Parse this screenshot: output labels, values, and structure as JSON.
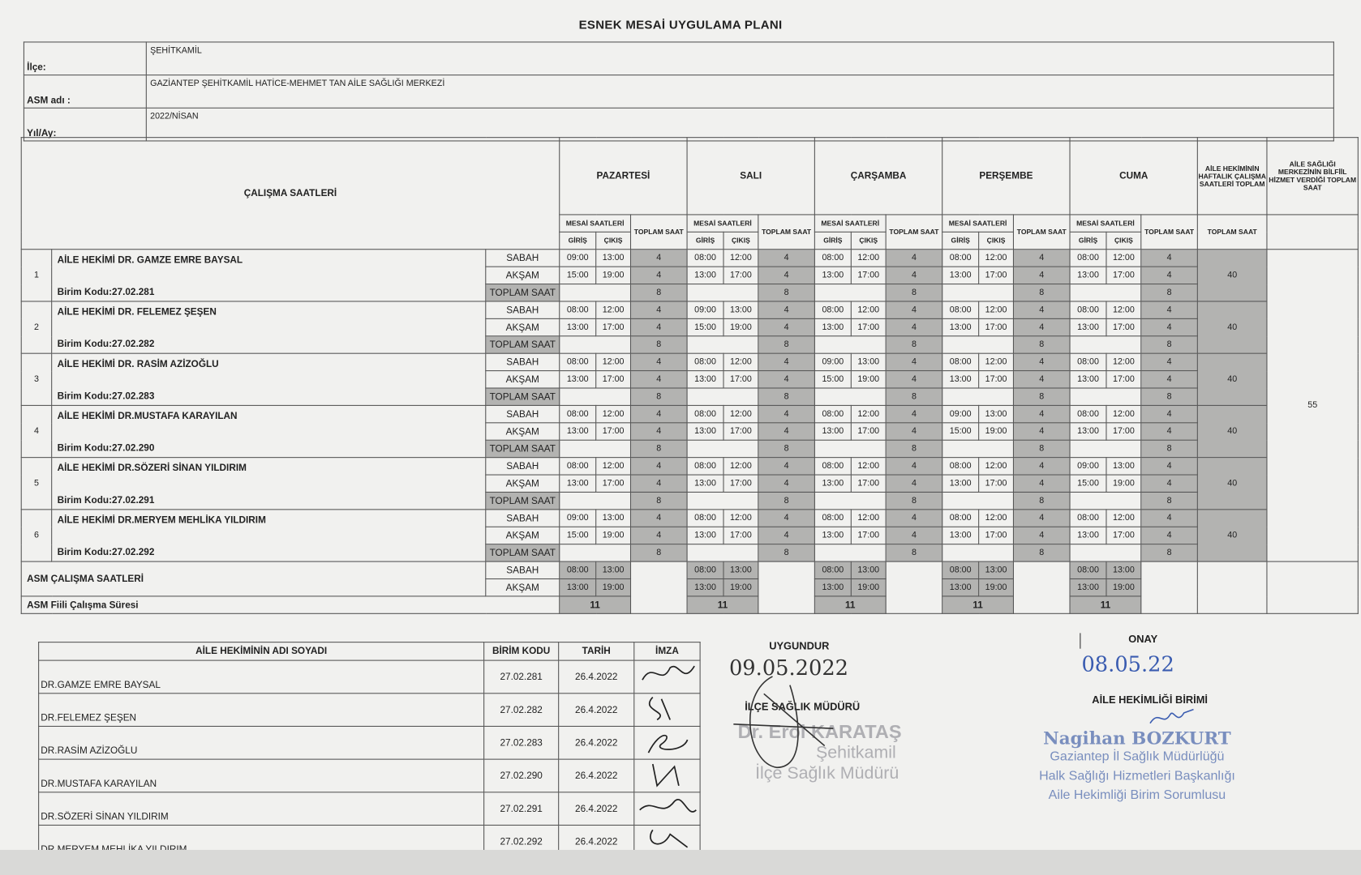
{
  "title": "ESNEK MESAİ UYGULAMA PLANI",
  "header": {
    "ilce_label": "İlçe:",
    "ilce": "ŞEHİTKAMİL",
    "asm_label": "ASM adı :",
    "asm": "GAZİANTEP ŞEHİTKAMİL HATİCE-MEHMET TAN AİLE SAĞLIĞI MERKEZİ",
    "yilay_label": "Yıl/Ay:",
    "yilay": "2022/NİSAN"
  },
  "table": {
    "section_title": "ÇALIŞMA SAATLERİ",
    "days": [
      "PAZARTESİ",
      "SALI",
      "ÇARŞAMBA",
      "PERŞEMBE",
      "CUMA"
    ],
    "mesai_label": "MESAİ SAATLERİ",
    "toplam_saat_label": "TOPLAM SAAT",
    "giris": "GİRİŞ",
    "cikis": "ÇIKIŞ",
    "weekly_header": "AİLE HEKİMİNİN HAFTALIK ÇALIŞMA SAATLERİ TOPLAM",
    "asm_header": "AİLE SAĞLIĞI MERKEZİNİN BİLFİİL HİZMET VERDİĞİ TOPLAM SAAT",
    "sabah": "SABAH",
    "aksam": "AKŞAM",
    "toplam_row": "TOPLAM SAAT",
    "shift_hours": "4",
    "day_hours": "8",
    "doctors": [
      {
        "no": "1",
        "name": "AİLE HEKİMİ DR. GAMZE EMRE BAYSAL",
        "kod": "Birim Kodu:27.02.281",
        "weekly": "40",
        "days": [
          {
            "s": [
              "09:00",
              "13:00"
            ],
            "a": [
              "15:00",
              "19:00"
            ]
          },
          {
            "s": [
              "08:00",
              "12:00"
            ],
            "a": [
              "13:00",
              "17:00"
            ]
          },
          {
            "s": [
              "08:00",
              "12:00"
            ],
            "a": [
              "13:00",
              "17:00"
            ]
          },
          {
            "s": [
              "08:00",
              "12:00"
            ],
            "a": [
              "13:00",
              "17:00"
            ]
          },
          {
            "s": [
              "08:00",
              "12:00"
            ],
            "a": [
              "13:00",
              "17:00"
            ]
          }
        ]
      },
      {
        "no": "2",
        "name": "AİLE HEKİMİ DR. FELEMEZ ŞEŞEN",
        "kod": "Birim Kodu:27.02.282",
        "weekly": "40",
        "days": [
          {
            "s": [
              "08:00",
              "12:00"
            ],
            "a": [
              "13:00",
              "17:00"
            ]
          },
          {
            "s": [
              "09:00",
              "13:00"
            ],
            "a": [
              "15:00",
              "19:00"
            ]
          },
          {
            "s": [
              "08:00",
              "12:00"
            ],
            "a": [
              "13:00",
              "17:00"
            ]
          },
          {
            "s": [
              "08:00",
              "12:00"
            ],
            "a": [
              "13:00",
              "17:00"
            ]
          },
          {
            "s": [
              "08:00",
              "12:00"
            ],
            "a": [
              "13:00",
              "17:00"
            ]
          }
        ]
      },
      {
        "no": "3",
        "name": "AİLE HEKİMİ DR. RASİM AZİZOĞLU",
        "kod": "Birim Kodu:27.02.283",
        "weekly": "40",
        "days": [
          {
            "s": [
              "08:00",
              "12:00"
            ],
            "a": [
              "13:00",
              "17:00"
            ]
          },
          {
            "s": [
              "08:00",
              "12:00"
            ],
            "a": [
              "13:00",
              "17:00"
            ]
          },
          {
            "s": [
              "09:00",
              "13:00"
            ],
            "a": [
              "15:00",
              "19:00"
            ]
          },
          {
            "s": [
              "08:00",
              "12:00"
            ],
            "a": [
              "13:00",
              "17:00"
            ]
          },
          {
            "s": [
              "08:00",
              "12:00"
            ],
            "a": [
              "13:00",
              "17:00"
            ]
          }
        ]
      },
      {
        "no": "4",
        "name": "AİLE HEKİMİ DR.MUSTAFA KARAYILAN",
        "kod": "Birim Kodu:27.02.290",
        "weekly": "40",
        "days": [
          {
            "s": [
              "08:00",
              "12:00"
            ],
            "a": [
              "13:00",
              "17:00"
            ]
          },
          {
            "s": [
              "08:00",
              "12:00"
            ],
            "a": [
              "13:00",
              "17:00"
            ]
          },
          {
            "s": [
              "08:00",
              "12:00"
            ],
            "a": [
              "13:00",
              "17:00"
            ]
          },
          {
            "s": [
              "09:00",
              "13:00"
            ],
            "a": [
              "15:00",
              "19:00"
            ]
          },
          {
            "s": [
              "08:00",
              "12:00"
            ],
            "a": [
              "13:00",
              "17:00"
            ]
          }
        ]
      },
      {
        "no": "5",
        "name": "AİLE HEKİMİ DR.SÖZERİ SİNAN YILDIRIM",
        "kod": "Birim Kodu:27.02.291",
        "weekly": "40",
        "days": [
          {
            "s": [
              "08:00",
              "12:00"
            ],
            "a": [
              "13:00",
              "17:00"
            ]
          },
          {
            "s": [
              "08:00",
              "12:00"
            ],
            "a": [
              "13:00",
              "17:00"
            ]
          },
          {
            "s": [
              "08:00",
              "12:00"
            ],
            "a": [
              "13:00",
              "17:00"
            ]
          },
          {
            "s": [
              "08:00",
              "12:00"
            ],
            "a": [
              "13:00",
              "17:00"
            ]
          },
          {
            "s": [
              "09:00",
              "13:00"
            ],
            "a": [
              "15:00",
              "19:00"
            ]
          }
        ]
      },
      {
        "no": "6",
        "name": "AİLE HEKİMİ DR.MERYEM MEHLİKA YILDIRIM",
        "kod": "Birim Kodu:27.02.292",
        "weekly": "40",
        "days": [
          {
            "s": [
              "09:00",
              "13:00"
            ],
            "a": [
              "15:00",
              "19:00"
            ]
          },
          {
            "s": [
              "08:00",
              "12:00"
            ],
            "a": [
              "13:00",
              "17:00"
            ]
          },
          {
            "s": [
              "08:00",
              "12:00"
            ],
            "a": [
              "13:00",
              "17:00"
            ]
          },
          {
            "s": [
              "08:00",
              "12:00"
            ],
            "a": [
              "13:00",
              "17:00"
            ]
          },
          {
            "s": [
              "08:00",
              "12:00"
            ],
            "a": [
              "13:00",
              "17:00"
            ]
          }
        ]
      }
    ],
    "asm_total": "55",
    "asm_rows_label": "ASM ÇALIŞMA SAATLERİ",
    "asm_sabah": [
      "08:00",
      "13:00"
    ],
    "asm_aksam": [
      "13:00",
      "19:00"
    ],
    "fiili_label": "ASM Fiili Çalışma Süresi",
    "fiili": "11"
  },
  "signatures": {
    "headers": {
      "name": "AİLE HEKİMİNİN ADI SOYADI",
      "kod": "BİRİM KODU",
      "tarih": "TARİH",
      "imza": "İMZA"
    },
    "rows": [
      {
        "name": "DR.GAMZE EMRE BAYSAL",
        "kod": "27.02.281",
        "tarih": "26.4.2022"
      },
      {
        "name": "DR.FELEMEZ ŞEŞEN",
        "kod": "27.02.282",
        "tarih": "26.4.2022"
      },
      {
        "name": "DR.RASİM AZİZOĞLU",
        "kod": "27.02.283",
        "tarih": "26.4.2022"
      },
      {
        "name": "DR.MUSTAFA KARAYILAN",
        "kod": "27.02.290",
        "tarih": "26.4.2022"
      },
      {
        "name": "DR.SÖZERİ SİNAN YILDIRIM",
        "kod": "27.02.291",
        "tarih": "26.4.2022"
      },
      {
        "name": "DR.MERYEM MEHLİKA YILDIRIM",
        "kod": "27.02.292",
        "tarih": "26.4.2022"
      }
    ]
  },
  "approvals": {
    "uygundur_label": "UYGUNDUR",
    "uygundur_date": "09.05.2022",
    "ilce_mudur_label": "İLÇE SAĞLIK MÜDÜRÜ",
    "stamp1": [
      "Dr. Erol KARATAŞ",
      "Şehitkamil",
      "İlçe Sağlık Müdürü"
    ],
    "onay_label": "ONAY",
    "onay_date": "08.05.22",
    "birim_label": "AİLE HEKİMLİĞİ BİRİMİ",
    "stamp2": [
      "Nagihan BOZKURT",
      "Gaziantep İl Sağlık Müdürlüğü",
      "Halk Sağlığı Hizmetleri Başkanlığı",
      "Aile Hekimliği Birim Sorumlusu"
    ]
  }
}
